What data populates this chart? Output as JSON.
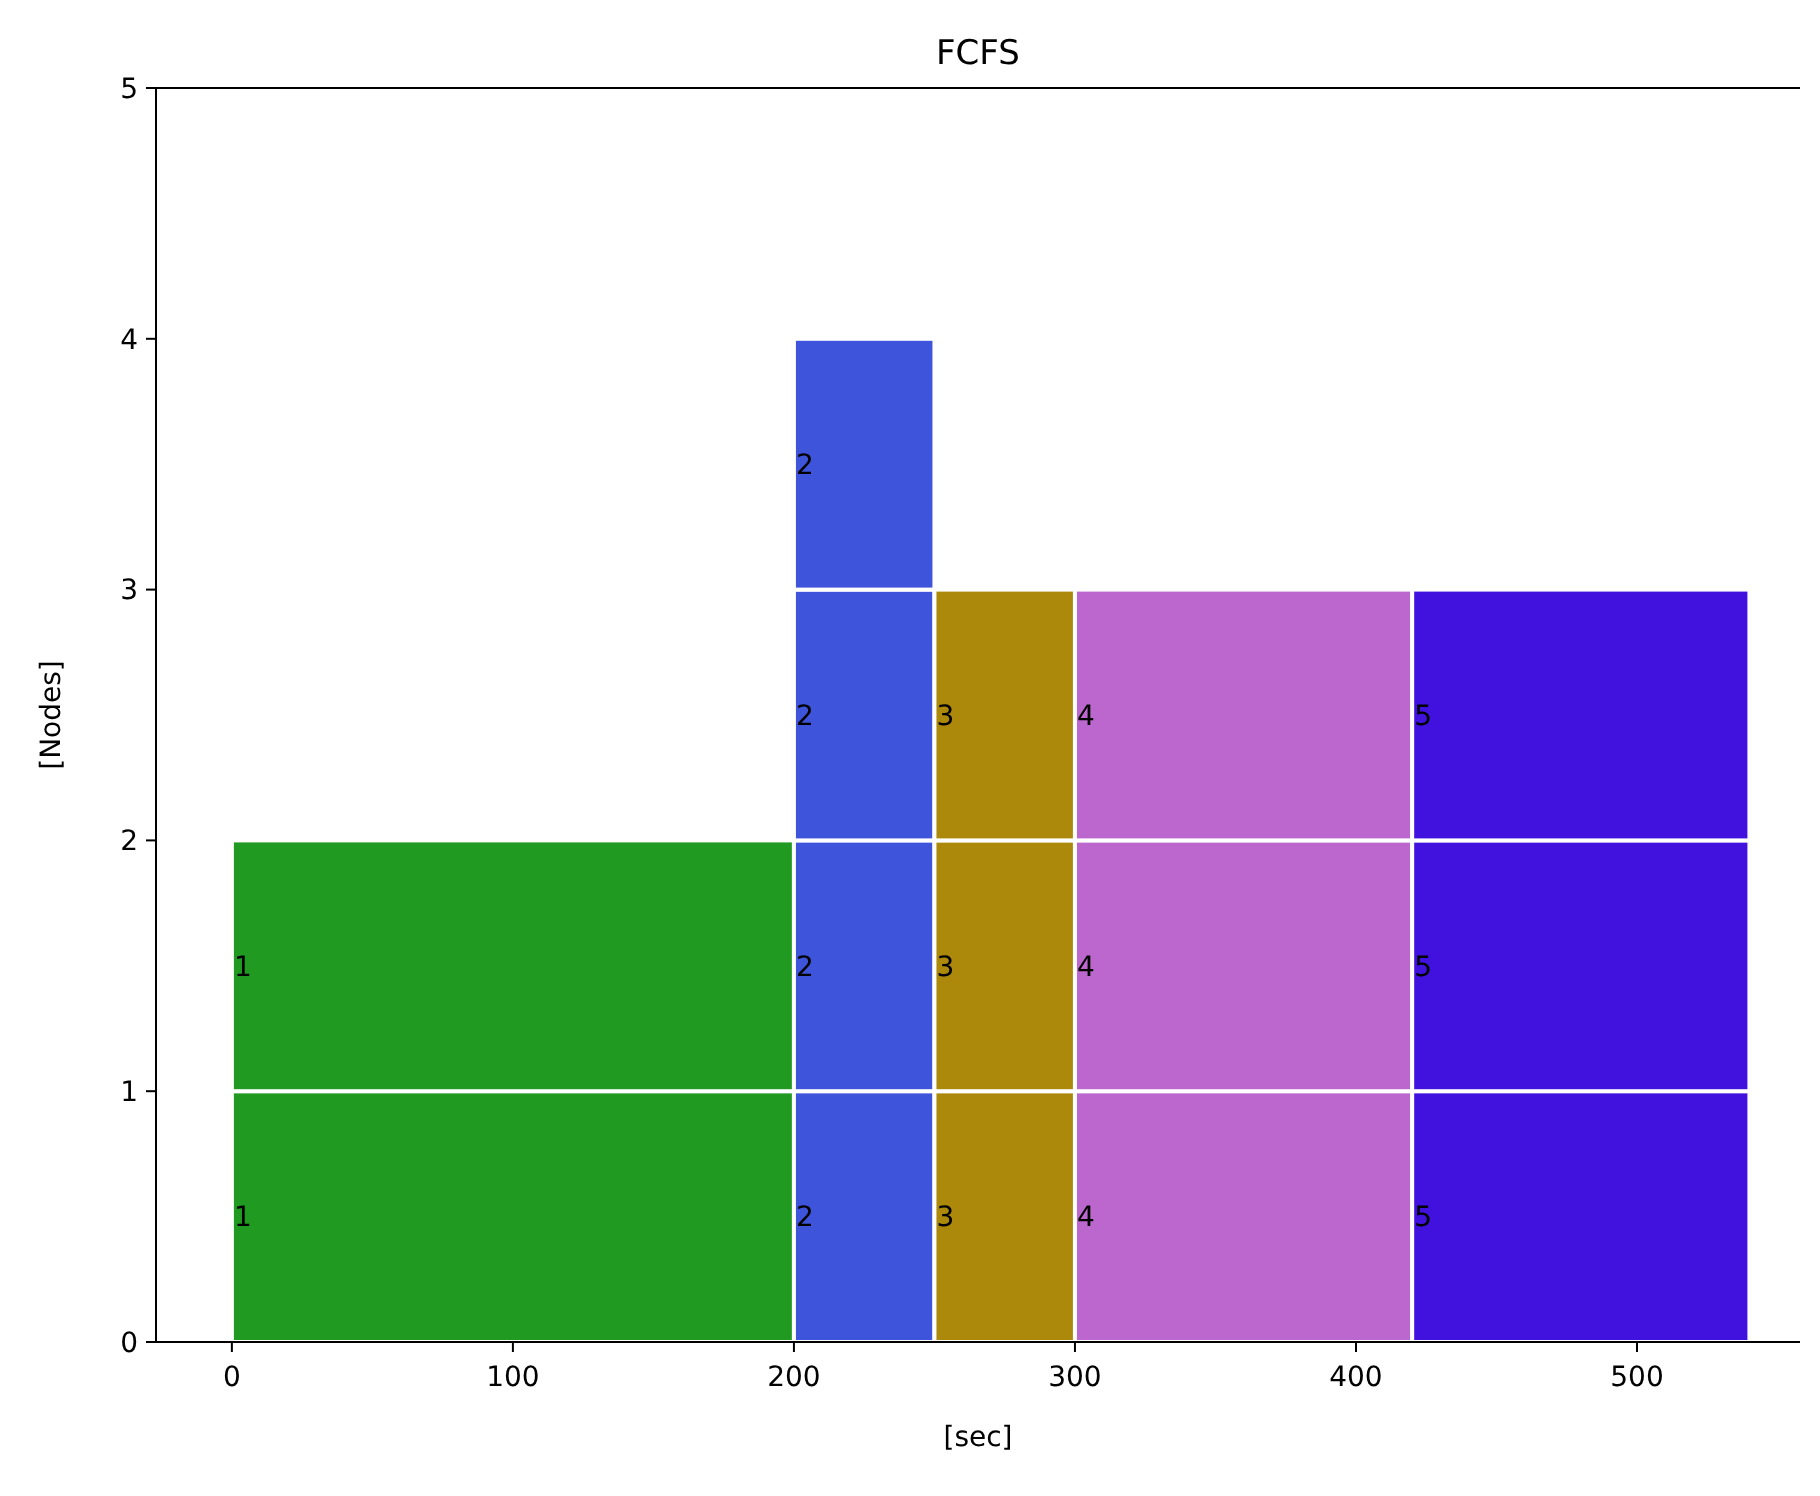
{
  "chart_data": {
    "type": "bar",
    "orientation": "horizontal",
    "title": "FCFS",
    "xlabel": "[sec]",
    "ylabel": "[Nodes]",
    "x": [
      0.5,
      1.5,
      2.5,
      3.5
    ],
    "xlim": [
      -27,
      558
    ],
    "xticks": [
      0,
      100,
      200,
      300,
      400,
      500
    ],
    "ylim": [
      0,
      5
    ],
    "yticks": [
      0,
      1,
      2,
      3,
      4,
      5
    ],
    "series": [
      {
        "name": "1",
        "color": "#219a22",
        "base": [
          0,
          0,
          null,
          null
        ],
        "values": [
          200,
          200,
          null,
          null
        ]
      },
      {
        "name": "2",
        "color": "#3e55db",
        "base": [
          200,
          200,
          200,
          200
        ],
        "values": [
          50,
          50,
          50,
          50
        ]
      },
      {
        "name": "3",
        "color": "#ad890b",
        "base": [
          250,
          250,
          250,
          null
        ],
        "values": [
          50,
          50,
          50,
          null
        ]
      },
      {
        "name": "4",
        "color": "#bb67cd",
        "base": [
          300,
          300,
          300,
          null
        ],
        "values": [
          120,
          120,
          120,
          null
        ]
      },
      {
        "name": "5",
        "color": "#4111de",
        "base": [
          420,
          420,
          420,
          null
        ],
        "values": [
          120,
          120,
          120,
          null
        ]
      }
    ]
  }
}
